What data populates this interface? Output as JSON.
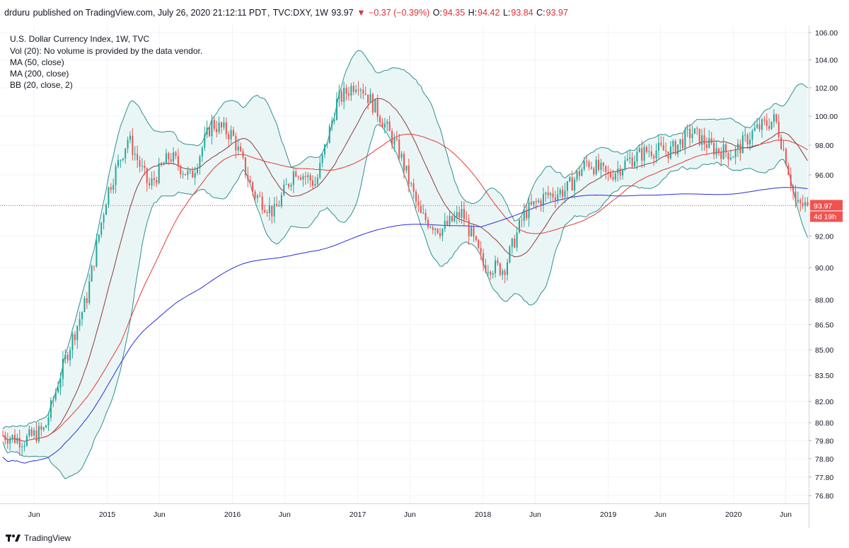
{
  "header": {
    "publisher": "drduru",
    "published_text": "published on TradingView.com, July 26, 2020 21:12:11 PDT",
    "symbol": "TVC:DXY, 1W",
    "last": "93.97",
    "change_arrow": "▼",
    "change": "−0.37 (−0.39%)",
    "open_label": "O:",
    "open": "94.35",
    "high_label": "H:",
    "high": "94.42",
    "low_label": "L:",
    "low": "93.84",
    "close_label": "C:",
    "close": "93.97"
  },
  "legend": {
    "line1": "U.S. Dollar Currency Index, 1W, TVC",
    "line2": "Vol (20): No volume is provided by the data vendor.",
    "line3": "MA (50, close)",
    "line4": "MA (200, close)",
    "line5": "BB (20, close, 2)"
  },
  "price_tag": {
    "value": "93.97",
    "countdown": "4d 19h"
  },
  "footer": {
    "brand": "TradingView"
  },
  "colors": {
    "up": "#26a69a",
    "down": "#ef5350",
    "ma50": "#e53935",
    "ma200": "#2b2bd9",
    "bb_basis": "#8b3a3a",
    "bb_band": "#2f8f8f",
    "bb_fill": "#eaf6f6",
    "grid": "#f0f3fa"
  },
  "chart_data": {
    "type": "candlestick",
    "title": "U.S. Dollar Currency Index, 1W, TVC",
    "x_ticks": [
      "Jun",
      "2015",
      "Jun",
      "2016",
      "Jun",
      "2017",
      "Jun",
      "2018",
      "Jun",
      "2019",
      "Jun",
      "2020",
      "Jun"
    ],
    "x_tick_dates": [
      "2014-06",
      "2015-01",
      "2015-06",
      "2016-01",
      "2016-06",
      "2017-01",
      "2017-06",
      "2018-01",
      "2018-06",
      "2019-01",
      "2019-06",
      "2020-01",
      "2020-06"
    ],
    "y_ticks": [
      "106.00",
      "104.00",
      "102.00",
      "100.00",
      "98.00",
      "96.00",
      "94.00",
      "92.00",
      "90.00",
      "88.00",
      "86.50",
      "85.00",
      "83.50",
      "82.00",
      "80.80",
      "79.80",
      "78.80",
      "77.80",
      "76.80"
    ],
    "y_scale": "log",
    "ylim": [
      76.5,
      106.2
    ],
    "x_start": "2014-03",
    "x_end": "2020-08",
    "last_price": 93.97,
    "keypoints": [
      {
        "date": "2014-03",
        "close": 80.1
      },
      {
        "date": "2014-05",
        "close": 79.8
      },
      {
        "date": "2014-07",
        "close": 80.4
      },
      {
        "date": "2014-09",
        "close": 84.5
      },
      {
        "date": "2014-11",
        "close": 88.0
      },
      {
        "date": "2015-01",
        "close": 94.8
      },
      {
        "date": "2015-03",
        "close": 98.5
      },
      {
        "date": "2015-05",
        "close": 95.2
      },
      {
        "date": "2015-07",
        "close": 97.3
      },
      {
        "date": "2015-09",
        "close": 95.8
      },
      {
        "date": "2015-11",
        "close": 99.5
      },
      {
        "date": "2016-01",
        "close": 98.7
      },
      {
        "date": "2016-03",
        "close": 94.8
      },
      {
        "date": "2016-05",
        "close": 93.5
      },
      {
        "date": "2016-07",
        "close": 96.4
      },
      {
        "date": "2016-09",
        "close": 95.4
      },
      {
        "date": "2016-11",
        "close": 101.0
      },
      {
        "date": "2017-01",
        "close": 102.5
      },
      {
        "date": "2017-03",
        "close": 100.2
      },
      {
        "date": "2017-05",
        "close": 97.5
      },
      {
        "date": "2017-07",
        "close": 93.3
      },
      {
        "date": "2017-09",
        "close": 92.4
      },
      {
        "date": "2017-11",
        "close": 93.5
      },
      {
        "date": "2018-01",
        "close": 90.2
      },
      {
        "date": "2018-03",
        "close": 89.9
      },
      {
        "date": "2018-05",
        "close": 93.5
      },
      {
        "date": "2018-07",
        "close": 94.6
      },
      {
        "date": "2018-09",
        "close": 95.0
      },
      {
        "date": "2018-11",
        "close": 96.9
      },
      {
        "date": "2019-01",
        "close": 95.9
      },
      {
        "date": "2019-03",
        "close": 97.0
      },
      {
        "date": "2019-05",
        "close": 97.7
      },
      {
        "date": "2019-07",
        "close": 97.6
      },
      {
        "date": "2019-09",
        "close": 98.9
      },
      {
        "date": "2019-11",
        "close": 97.8
      },
      {
        "date": "2020-01",
        "close": 97.4
      },
      {
        "date": "2020-03",
        "close": 99.0
      },
      {
        "date": "2020-05",
        "close": 99.8
      },
      {
        "date": "2020-06",
        "close": 97.2
      },
      {
        "date": "2020-07",
        "close": 93.97
      }
    ],
    "series": [
      {
        "name": "MA (50, close)",
        "color": "#e53935"
      },
      {
        "name": "MA (200, close)",
        "color": "#2b2bd9"
      },
      {
        "name": "BB (20, close, 2)",
        "color": "#2f8f8f"
      }
    ]
  }
}
